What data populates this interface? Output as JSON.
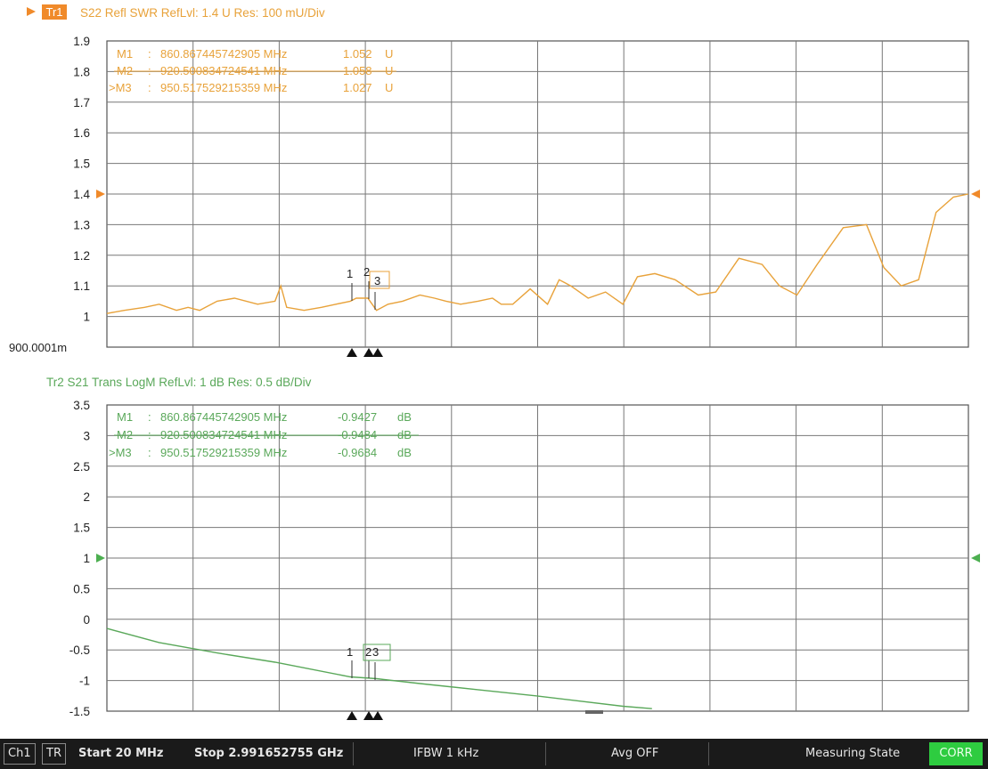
{
  "trace1": {
    "badge": "Tr1",
    "header": "S22 Refl SWR RefLvl: 1.4  U Res: 100 mU/Div",
    "color": "#e8a23a",
    "y_ticks": [
      "1.9",
      "1.8",
      "1.7",
      "1.6",
      "1.5",
      "1.4",
      "1.3",
      "1.2",
      "1.1",
      "1"
    ],
    "y_bottom_label": "900.0001m",
    "markers": [
      {
        "name": "M1",
        "sep": ":",
        "freq": "860.867445742905 MHz",
        "value": "1.052",
        "unit": "U"
      },
      {
        "name": "M2",
        "sep": ":",
        "freq": "920.500834724541 MHz",
        "value": "1.058",
        "unit": "U"
      },
      {
        "name": ">M3",
        "sep": ":",
        "freq": "950.517529215359 MHz",
        "value": "1.027",
        "unit": "U"
      }
    ],
    "marker_labels": [
      "1",
      "2",
      "3"
    ],
    "ref_value": 1.4,
    "ylim": [
      0.9,
      1.9
    ]
  },
  "trace2": {
    "header": "Tr2  S21 Trans LogM RefLvl: 1  dB Res: 0.5  dB/Div",
    "color": "#5aa85a",
    "y_ticks": [
      "3.5",
      "3",
      "2.5",
      "2",
      "1.5",
      "1",
      "0.5",
      "0",
      "-0.5",
      "-1",
      "-1.5"
    ],
    "markers": [
      {
        "name": "M1",
        "sep": ":",
        "freq": "860.867445742905 MHz",
        "value": "-0.9427",
        "unit": "dB"
      },
      {
        "name": "M2",
        "sep": ":",
        "freq": "920.500834724541 MHz",
        "value": "-0.9484",
        "unit": "dB"
      },
      {
        "name": ">M3",
        "sep": ":",
        "freq": "950.517529215359 MHz",
        "value": "-0.9684",
        "unit": "dB"
      }
    ],
    "marker_labels": [
      "1",
      "2",
      "3"
    ],
    "ref_value": 1,
    "ylim": [
      -1.5,
      3.5
    ]
  },
  "status": {
    "channel": "Ch1",
    "mode": "TR",
    "start": "Start 20 MHz",
    "stop": "Stop 2.991652755 GHz",
    "ifbw": "IFBW 1 kHz",
    "avg": "Avg OFF",
    "state": "Measuring State",
    "corr": "CORR"
  },
  "chart_data": [
    {
      "type": "line",
      "title": "S22 Refl SWR",
      "ylabel": "U",
      "xlim": [
        20,
        2991.652755
      ],
      "ylim": [
        0.9,
        1.9
      ],
      "grid": true,
      "series": [
        {
          "name": "S22",
          "x": [
            20,
            80,
            150,
            200,
            260,
            300,
            340,
            400,
            460,
            540,
            600,
            620,
            640,
            700,
            760,
            810,
            860,
            880,
            920,
            950,
            990,
            1040,
            1100,
            1150,
            1190,
            1240,
            1300,
            1350,
            1380,
            1420,
            1480,
            1540,
            1580,
            1620,
            1680,
            1740,
            1800,
            1850,
            1910,
            1980,
            2060,
            2120,
            2200,
            2280,
            2340,
            2400,
            2470,
            2560,
            2640,
            2700,
            2760,
            2820,
            2880,
            2940,
            2991
          ],
          "values": [
            1.01,
            1.02,
            1.03,
            1.04,
            1.02,
            1.03,
            1.02,
            1.05,
            1.06,
            1.04,
            1.05,
            1.1,
            1.03,
            1.02,
            1.03,
            1.04,
            1.05,
            1.06,
            1.06,
            1.02,
            1.04,
            1.05,
            1.07,
            1.06,
            1.05,
            1.04,
            1.05,
            1.06,
            1.04,
            1.04,
            1.09,
            1.04,
            1.12,
            1.1,
            1.06,
            1.08,
            1.04,
            1.13,
            1.14,
            1.12,
            1.07,
            1.08,
            1.19,
            1.17,
            1.1,
            1.07,
            1.17,
            1.29,
            1.3,
            1.16,
            1.1,
            1.12,
            1.34,
            1.39,
            1.4
          ]
        }
      ]
    },
    {
      "type": "line",
      "title": "S21 Trans LogM",
      "ylabel": "dB",
      "xlim": [
        20,
        2991.652755
      ],
      "ylim": [
        -1.5,
        3.5
      ],
      "grid": true,
      "series": [
        {
          "name": "S21",
          "x": [
            20,
            200,
            400,
            600,
            860,
            950,
            1100,
            1300,
            1500,
            1800,
            1900
          ],
          "values": [
            -0.15,
            -0.38,
            -0.55,
            -0.7,
            -0.94,
            -0.97,
            -1.05,
            -1.15,
            -1.25,
            -1.42,
            -1.46
          ]
        }
      ]
    }
  ]
}
